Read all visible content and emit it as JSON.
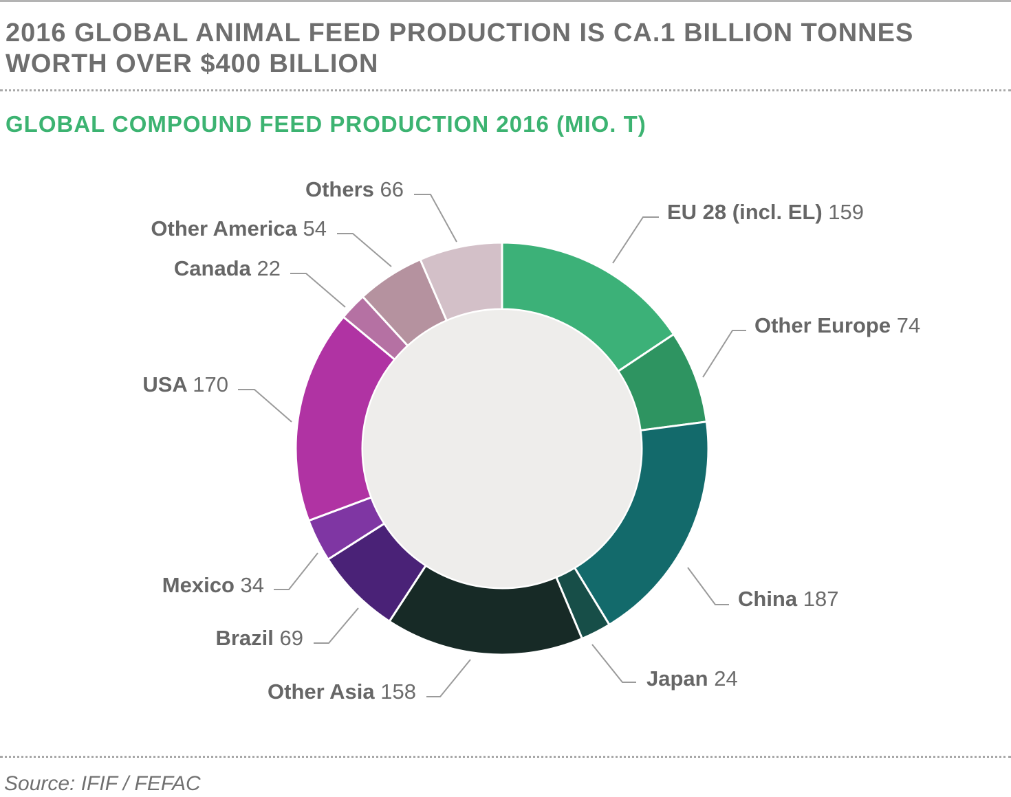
{
  "header": {
    "title": "2016 GLOBAL ANIMAL FEED PRODUCTION IS CA.1 BILLION TONNES WORTH OVER $400 BILLION",
    "subtitle": "GLOBAL COMPOUND FEED PRODUCTION 2016 (MIO. T)"
  },
  "footer": {
    "source": "Source: IFIF / FEFAC"
  },
  "colors": {
    "title": "#6e6e6e",
    "subtitle": "#3cb371",
    "center": "#eeedeb",
    "leader": "#9a9a9a"
  },
  "chart_data": {
    "type": "pie",
    "variant": "donut",
    "title": "GLOBAL COMPOUND FEED PRODUCTION 2016 (MIO. T)",
    "unit": "MIO. T",
    "start_angle_deg": 0,
    "direction": "clockwise",
    "slices": [
      {
        "label": "EU 28 (incl. EL)",
        "value": 159,
        "value_text": "159",
        "color": "#3cb178"
      },
      {
        "label": "Other Europe",
        "value": 74,
        "value_text": "74",
        "color": "#2e9461"
      },
      {
        "label": "China",
        "value": 187,
        "value_text": "187",
        "color": "#136a6b"
      },
      {
        "label": "Japan",
        "value": 24,
        "value_text": "24",
        "color": "#174e48"
      },
      {
        "label": "Other Asia",
        "value": 158,
        "value_text": "158",
        "color": "#172a26"
      },
      {
        "label": "Brazil",
        "value": 69,
        "value_text": "69",
        "color": "#4a2277"
      },
      {
        "label": "Mexico",
        "value": 34,
        "value_text": "34",
        "color": "#7f36a3"
      },
      {
        "label": "USA",
        "value": 170,
        "value_text": "170",
        "color": "#b033a3"
      },
      {
        "label": "Canada",
        "value": 22,
        "value_text": "22",
        "color": "#b571a3"
      },
      {
        "label": "Other America",
        "value": 54,
        "value_text": "54",
        "color": "#b5929f"
      },
      {
        "label": "Others",
        "value": 66,
        "value_text": "66",
        "color": "#d3c0c8"
      }
    ]
  }
}
